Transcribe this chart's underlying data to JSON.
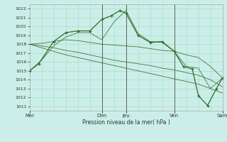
{
  "background_color": "#cceee8",
  "grid_color": "#aaddcc",
  "line_color": "#2d6e2d",
  "marker_color": "#2d6e2d",
  "xlabel": "Pression niveau de la mer( hPa )",
  "ylim": [
    1010.5,
    1022.5
  ],
  "yticks": [
    1011,
    1012,
    1013,
    1014,
    1015,
    1016,
    1017,
    1018,
    1019,
    1020,
    1021,
    1022
  ],
  "xtick_positions": [
    0,
    3,
    4,
    6,
    8
  ],
  "xtick_labels": [
    "Mer",
    "Dim",
    "Jeu",
    "Ven",
    "Sam"
  ],
  "vline_positions": [
    3,
    4,
    6
  ],
  "ensemble_lines": [
    {
      "x": [
        0,
        0.5,
        1.0,
        1.5,
        2.0,
        2.5,
        3.0,
        3.5,
        4.0,
        4.5,
        5.0,
        5.5,
        6.0,
        6.5,
        7.0,
        7.5,
        8.0
      ],
      "y": [
        1015.0,
        1016.2,
        1017.8,
        1018.8,
        1019.3,
        1019.3,
        1018.5,
        1020.5,
        1021.8,
        1019.2,
        1018.3,
        1018.2,
        1017.2,
        1015.5,
        1015.3,
        1013.0,
        1014.2
      ]
    },
    {
      "x": [
        0,
        0.5,
        1.0,
        1.5,
        2.0,
        2.5,
        3.0,
        3.5,
        4.0,
        4.5,
        5.0,
        5.5,
        6.0,
        6.5,
        7.0,
        7.5,
        8.0
      ],
      "y": [
        1018.0,
        1018.1,
        1018.3,
        1018.5,
        1018.4,
        1018.2,
        1018.0,
        1017.9,
        1017.8,
        1017.7,
        1017.5,
        1017.3,
        1017.2,
        1016.8,
        1016.5,
        1015.5,
        1014.2
      ]
    },
    {
      "x": [
        0,
        0.5,
        1.0,
        1.5,
        2.0,
        2.5,
        3.0,
        3.5,
        4.0,
        4.5,
        5.0,
        5.5,
        6.0,
        6.5,
        7.0,
        7.5,
        8.0
      ],
      "y": [
        1018.0,
        1017.8,
        1017.6,
        1017.3,
        1017.1,
        1016.8,
        1016.5,
        1016.2,
        1016.0,
        1015.8,
        1015.6,
        1015.3,
        1015.1,
        1014.8,
        1014.5,
        1014.0,
        1013.2
      ]
    },
    {
      "x": [
        0,
        0.5,
        1.0,
        1.5,
        2.0,
        2.5,
        3.0,
        3.5,
        4.0,
        4.5,
        5.0,
        5.5,
        6.0,
        6.5,
        7.0,
        7.5,
        8.0
      ],
      "y": [
        1018.0,
        1017.6,
        1017.2,
        1016.8,
        1016.5,
        1016.2,
        1015.9,
        1015.6,
        1015.3,
        1015.0,
        1014.7,
        1014.4,
        1014.1,
        1013.8,
        1013.5,
        1013.0,
        1012.5
      ]
    }
  ],
  "main_line_x": [
    0,
    0.38,
    1.0,
    1.5,
    2.0,
    2.5,
    3.0,
    3.38,
    3.75,
    4.0,
    4.5,
    5.0,
    5.5,
    6.0,
    6.38,
    6.75,
    7.0,
    7.38,
    7.75,
    8.0
  ],
  "main_line_y": [
    1015.0,
    1015.8,
    1018.3,
    1019.3,
    1019.5,
    1019.5,
    1020.8,
    1021.2,
    1021.8,
    1021.5,
    1019.0,
    1018.2,
    1018.3,
    1017.2,
    1015.5,
    1015.2,
    1012.2,
    1011.1,
    1013.0,
    1014.2
  ]
}
